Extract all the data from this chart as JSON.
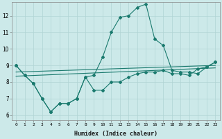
{
  "xlabel": "Humidex (Indice chaleur)",
  "bg_color": "#cce9e9",
  "grid_color": "#b0d4d4",
  "line_color": "#1a7a6e",
  "xlim": [
    -0.5,
    23.5
  ],
  "ylim": [
    5.7,
    12.8
  ],
  "yticks": [
    6,
    7,
    8,
    9,
    10,
    11,
    12
  ],
  "xticks": [
    0,
    1,
    2,
    3,
    4,
    5,
    6,
    7,
    8,
    9,
    10,
    11,
    12,
    13,
    14,
    15,
    16,
    17,
    18,
    19,
    20,
    21,
    22,
    23
  ],
  "line_spike_x": [
    0,
    1,
    2,
    3,
    4,
    5,
    6,
    7,
    8,
    9,
    10,
    11,
    12,
    13,
    14,
    15,
    16,
    17,
    18,
    19,
    20,
    21,
    22,
    23
  ],
  "line_spike_y": [
    9.0,
    8.4,
    7.9,
    7.0,
    6.2,
    6.7,
    6.7,
    7.0,
    8.3,
    8.4,
    9.5,
    11.0,
    11.9,
    12.0,
    12.5,
    12.7,
    10.6,
    10.2,
    8.7,
    8.6,
    8.6,
    8.5,
    8.9,
    9.2
  ],
  "line_low_x": [
    0,
    1,
    2,
    3,
    4,
    5,
    6,
    7,
    8,
    9,
    10,
    11,
    12,
    13,
    14,
    15,
    16,
    17,
    18,
    19,
    20,
    21,
    22,
    23
  ],
  "line_low_y": [
    9.0,
    8.4,
    7.9,
    7.0,
    6.2,
    6.7,
    6.7,
    7.0,
    8.3,
    7.5,
    7.5,
    8.0,
    8.0,
    8.3,
    8.5,
    8.6,
    8.6,
    8.7,
    8.5,
    8.5,
    8.4,
    8.8,
    8.9,
    9.2
  ],
  "line_trend1_x": [
    0,
    23
  ],
  "line_trend1_y": [
    8.35,
    8.85
  ],
  "line_trend2_x": [
    0,
    23
  ],
  "line_trend2_y": [
    8.6,
    9.0
  ]
}
